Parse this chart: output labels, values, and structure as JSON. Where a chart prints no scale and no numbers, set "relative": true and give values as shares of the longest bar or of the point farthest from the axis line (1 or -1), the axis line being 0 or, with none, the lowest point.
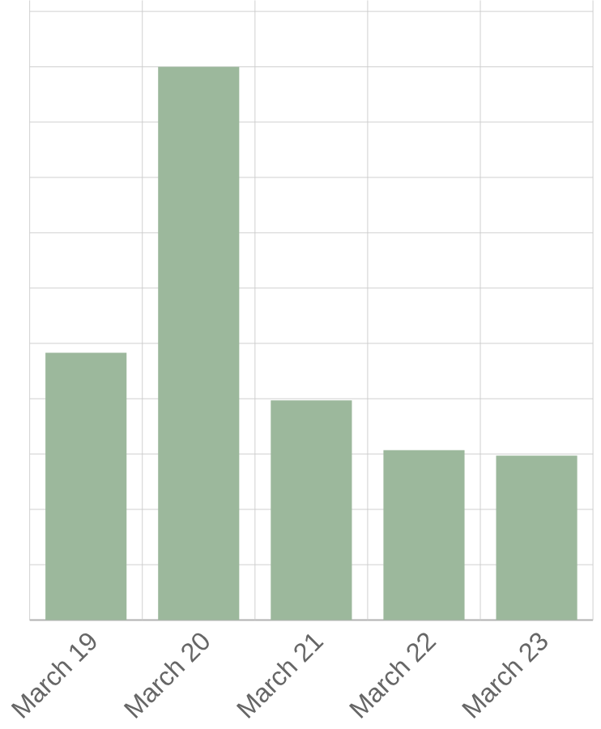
{
  "chart_data": {
    "type": "bar",
    "categories": [
      "March 19",
      "March 20",
      "March 21",
      "March 22",
      "March 23"
    ],
    "values": [
      0.483,
      1,
      0.397,
      0.307,
      0.297
    ],
    "color": "#9cb89c",
    "relative": true,
    "grid": true
  }
}
